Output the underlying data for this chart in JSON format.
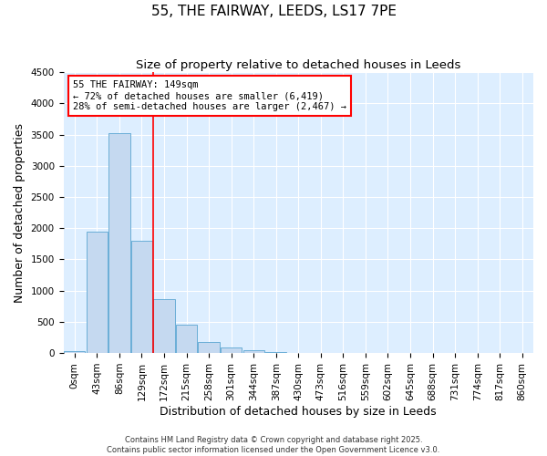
{
  "title": "55, THE FAIRWAY, LEEDS, LS17 7PE",
  "subtitle": "Size of property relative to detached houses in Leeds",
  "xlabel": "Distribution of detached houses by size in Leeds",
  "ylabel": "Number of detached properties",
  "bar_labels": [
    "0sqm",
    "43sqm",
    "86sqm",
    "129sqm",
    "172sqm",
    "215sqm",
    "258sqm",
    "301sqm",
    "344sqm",
    "387sqm",
    "430sqm",
    "473sqm",
    "516sqm",
    "559sqm",
    "602sqm",
    "645sqm",
    "688sqm",
    "731sqm",
    "774sqm",
    "817sqm",
    "860sqm"
  ],
  "bar_heights": [
    25,
    1950,
    3520,
    1800,
    860,
    460,
    175,
    95,
    45,
    20,
    5,
    2,
    0,
    0,
    0,
    0,
    0,
    0,
    0,
    0,
    0
  ],
  "bar_color": "#c5d9f0",
  "bar_edge_color": "#6aaed6",
  "vline_color": "red",
  "vline_x": 3.5,
  "annotation_text": "55 THE FAIRWAY: 149sqm\n← 72% of detached houses are smaller (6,419)\n28% of semi-detached houses are larger (2,467) →",
  "annotation_box_color": "white",
  "annotation_box_edge_color": "red",
  "ylim": [
    0,
    4500
  ],
  "footnote1": "Contains HM Land Registry data © Crown copyright and database right 2025.",
  "footnote2": "Contains public sector information licensed under the Open Government Licence v3.0.",
  "title_fontsize": 11,
  "subtitle_fontsize": 9.5,
  "axis_label_fontsize": 9,
  "tick_fontsize": 7.5,
  "annotation_fontsize": 7.5,
  "footnote_fontsize": 6,
  "background_color": "#ddeeff",
  "grid_color": "white",
  "fig_width": 6.0,
  "fig_height": 5.0,
  "fig_dpi": 100
}
